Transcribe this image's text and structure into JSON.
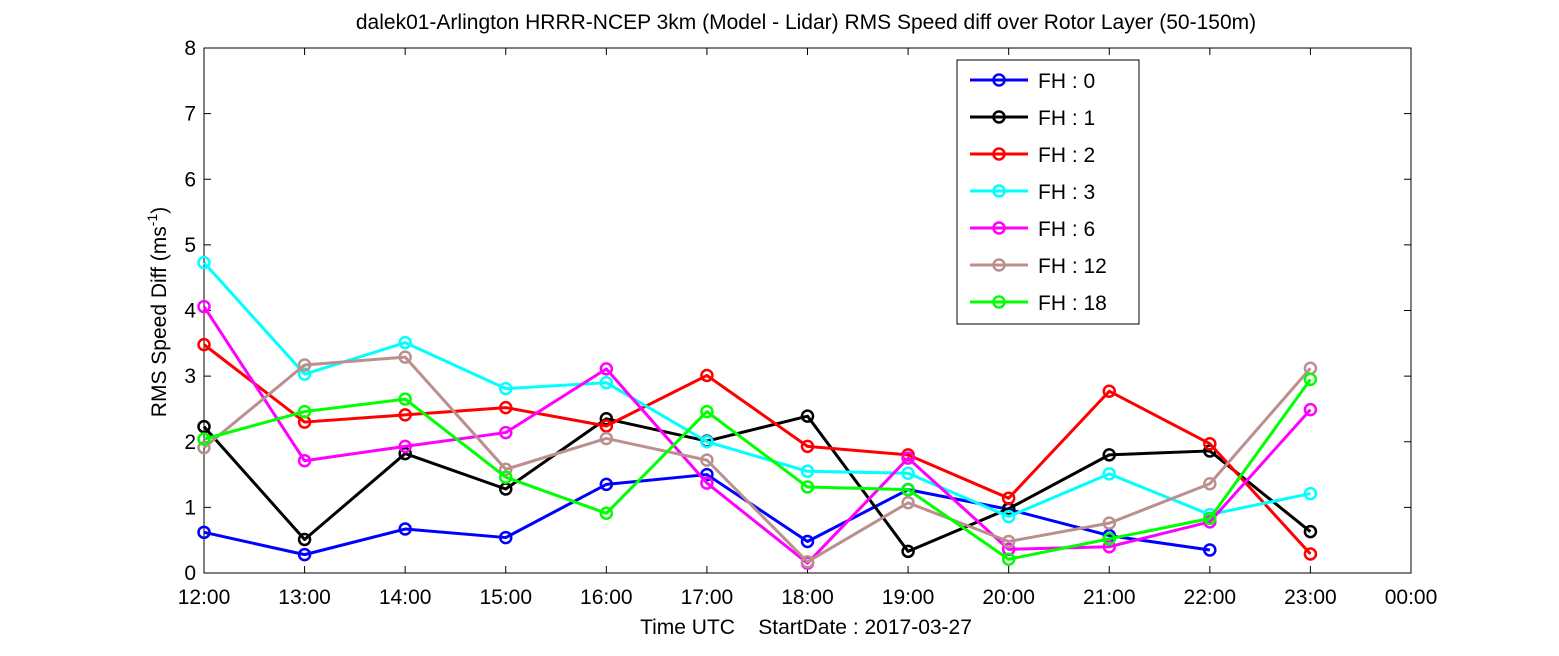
{
  "chart_data": {
    "type": "line",
    "title": "dalek01-Arlington HRRR-NCEP 3km (Model - Lidar) RMS Speed diff over Rotor Layer (50-150m)",
    "xlabel": "Time UTC    StartDate : 2017-03-27",
    "ylabel_main": "RMS Speed Diff (ms",
    "ylabel_sup": "-1",
    "ylabel_tail": ")",
    "x_ticks": [
      "12:00",
      "13:00",
      "14:00",
      "15:00",
      "16:00",
      "17:00",
      "18:00",
      "19:00",
      "20:00",
      "21:00",
      "22:00",
      "23:00",
      "00:00"
    ],
    "xlim": [
      0,
      12
    ],
    "y_ticks": [
      0,
      1,
      2,
      3,
      4,
      5,
      6,
      7,
      8
    ],
    "ylim": [
      0,
      8
    ],
    "grid": false,
    "legend_position": "top-right",
    "series": [
      {
        "name": "FH : 0",
        "color": "#0000ff",
        "values": [
          0.62,
          0.28,
          0.67,
          0.54,
          1.35,
          1.5,
          0.48,
          1.27,
          0.97,
          0.57,
          0.35,
          null
        ]
      },
      {
        "name": "FH : 1",
        "color": "#000000",
        "values": [
          2.23,
          0.51,
          1.82,
          1.28,
          2.35,
          2.01,
          2.39,
          0.33,
          0.98,
          1.8,
          1.86,
          0.63
        ]
      },
      {
        "name": "FH : 2",
        "color": "#ff0000",
        "values": [
          3.48,
          2.3,
          2.41,
          2.52,
          2.24,
          3.01,
          1.93,
          1.8,
          1.14,
          2.77,
          1.97,
          0.29
        ]
      },
      {
        "name": "FH : 3",
        "color": "#00ffff",
        "values": [
          4.73,
          3.03,
          3.51,
          2.81,
          2.9,
          2.0,
          1.55,
          1.52,
          0.86,
          1.51,
          0.89,
          1.21
        ]
      },
      {
        "name": "FH : 6",
        "color": "#ff00ff",
        "values": [
          4.06,
          1.71,
          1.93,
          2.14,
          3.11,
          1.37,
          0.15,
          1.75,
          0.36,
          0.4,
          0.78,
          2.49
        ]
      },
      {
        "name": "FH : 12",
        "color": "#bc8f8f",
        "values": [
          1.91,
          3.17,
          3.29,
          1.58,
          2.05,
          1.72,
          0.17,
          1.07,
          0.48,
          0.76,
          1.36,
          3.12
        ]
      },
      {
        "name": "FH : 18",
        "color": "#00ff00",
        "values": [
          2.04,
          2.46,
          2.65,
          1.46,
          0.91,
          2.46,
          1.31,
          1.27,
          0.21,
          0.52,
          0.83,
          2.95
        ]
      }
    ]
  }
}
